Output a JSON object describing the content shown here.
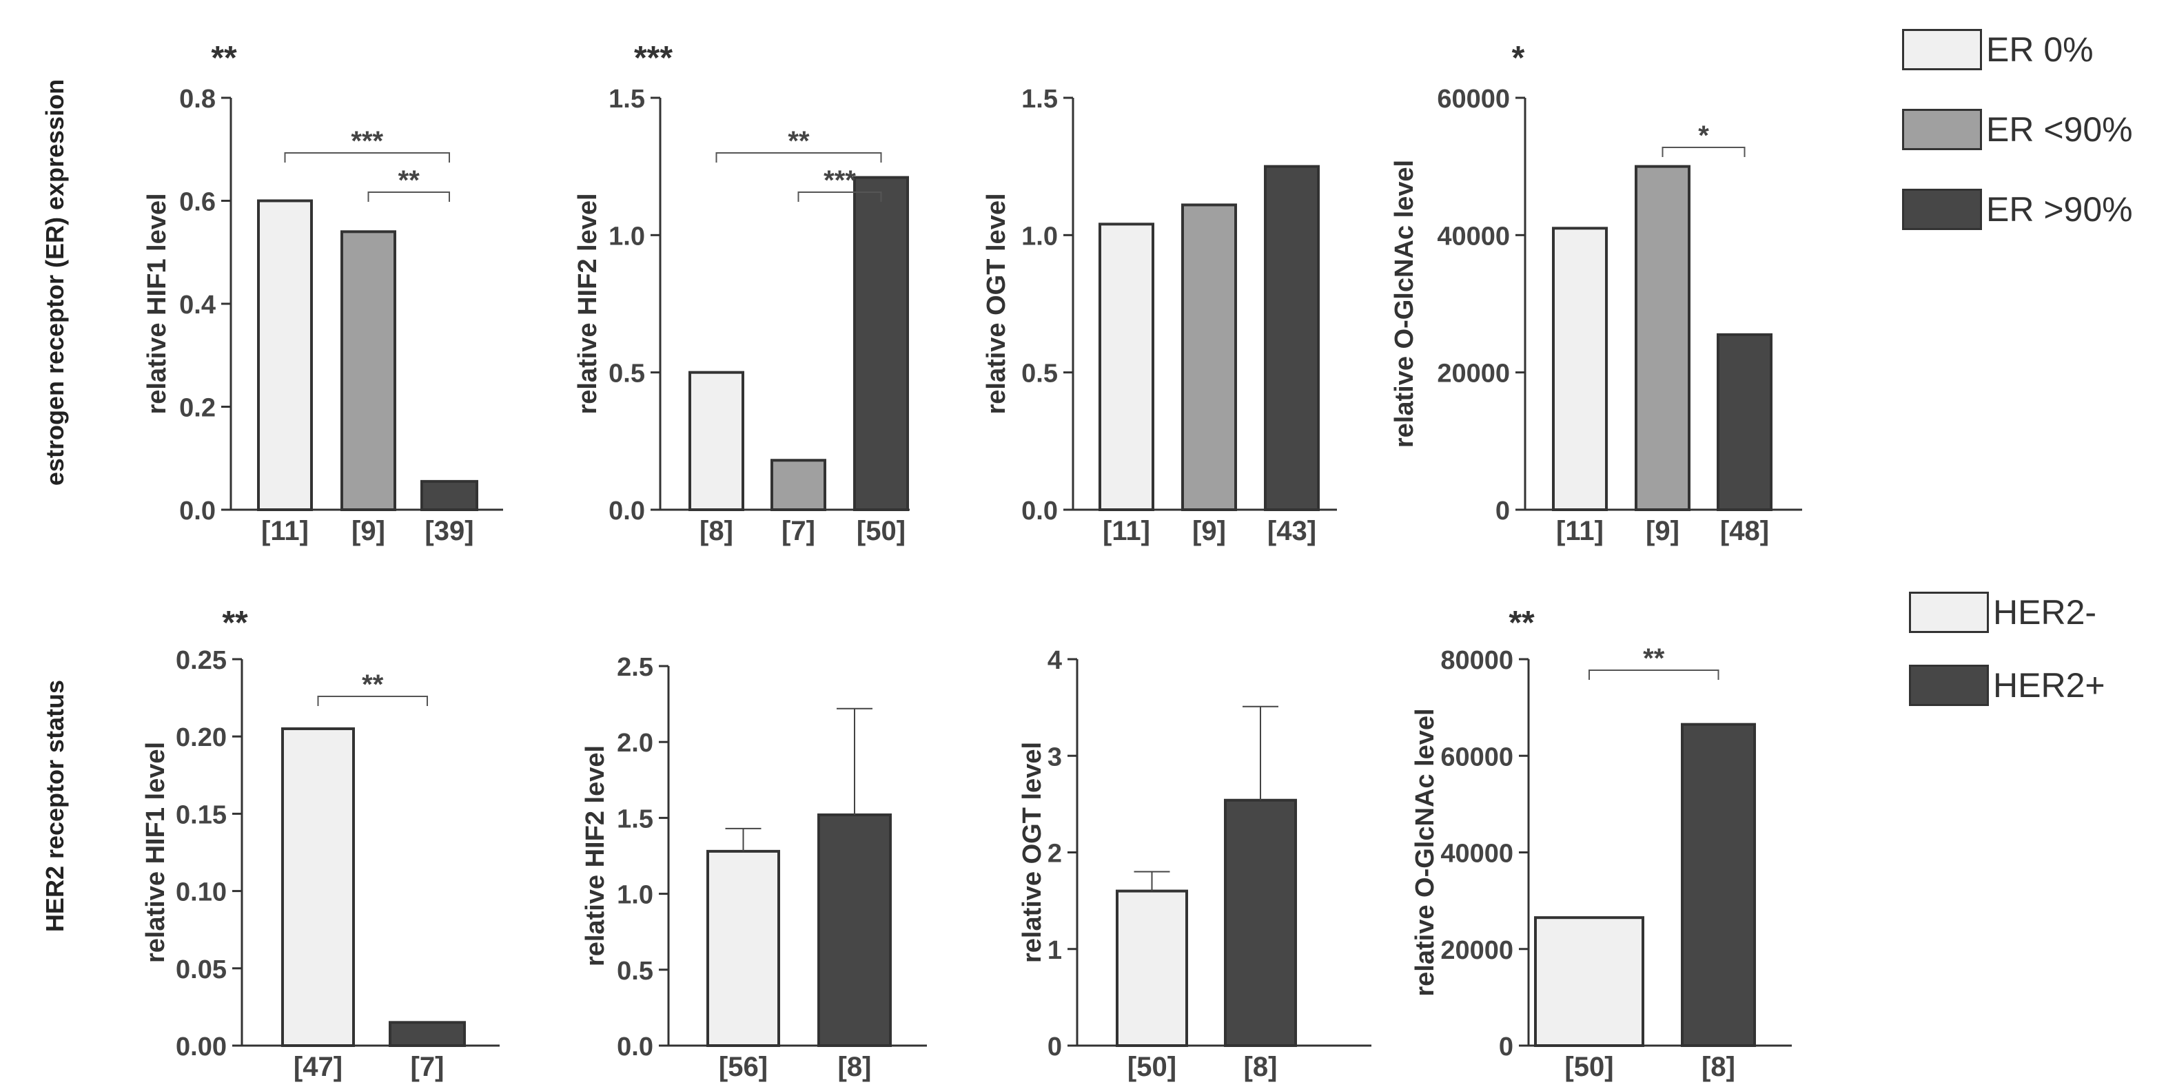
{
  "row_labels": [
    "estrogen receptor (ER) expression",
    "HER2 receptor status"
  ],
  "legends": [
    {
      "items": [
        {
          "label": "ER 0%",
          "color": "#f0f0f0"
        },
        {
          "label": "ER <90%",
          "color": "#a0a0a0"
        },
        {
          "label": "ER >90%",
          "color": "#474747"
        }
      ]
    },
    {
      "items": [
        {
          "label": "HER2-",
          "color": "#f0f0f0"
        },
        {
          "label": "HER2+",
          "color": "#474747"
        }
      ]
    }
  ],
  "chart_data": [
    {
      "type": "bar",
      "ylabel": "relative HIF1 level",
      "overall_sig": "**",
      "categories": [
        "[11]",
        "[9]",
        "[39]"
      ],
      "values": [
        0.6,
        0.54,
        0.055
      ],
      "colors": [
        "#f0f0f0",
        "#a0a0a0",
        "#474747"
      ],
      "ylim": [
        0,
        0.8
      ],
      "yticks": [
        0.0,
        0.2,
        0.4,
        0.6,
        0.8
      ],
      "ytick_labels": [
        "0.0",
        "0.2",
        "0.4",
        "0.6",
        "0.8"
      ],
      "brackets": [
        {
          "from": 0,
          "to": 2,
          "label": "***"
        },
        {
          "from": 1,
          "to": 2,
          "label": "**"
        }
      ]
    },
    {
      "type": "bar",
      "ylabel": "relative HIF2 level",
      "overall_sig": "***",
      "categories": [
        "[8]",
        "[7]",
        "[50]"
      ],
      "values": [
        0.5,
        0.18,
        1.21
      ],
      "colors": [
        "#f0f0f0",
        "#a0a0a0",
        "#474747"
      ],
      "ylim": [
        0,
        1.5
      ],
      "yticks": [
        0.0,
        0.5,
        1.0,
        1.5
      ],
      "ytick_labels": [
        "0.0",
        "0.5",
        "1.0",
        "1.5"
      ],
      "brackets": [
        {
          "from": 0,
          "to": 2,
          "label": "**"
        },
        {
          "from": 1,
          "to": 2,
          "label": "***"
        }
      ]
    },
    {
      "type": "bar",
      "ylabel": "relative OGT level",
      "overall_sig": "",
      "categories": [
        "[11]",
        "[9]",
        "[43]"
      ],
      "values": [
        1.04,
        1.11,
        1.25
      ],
      "colors": [
        "#f0f0f0",
        "#a0a0a0",
        "#474747"
      ],
      "ylim": [
        0,
        1.5
      ],
      "yticks": [
        0.0,
        0.5,
        1.0,
        1.5
      ],
      "ytick_labels": [
        "0.0",
        "0.5",
        "1.0",
        "1.5"
      ],
      "brackets": []
    },
    {
      "type": "bar",
      "ylabel": "relative O-GlcNAc level",
      "overall_sig": "*",
      "categories": [
        "[11]",
        "[9]",
        "[48]"
      ],
      "values": [
        41000,
        50000,
        25500
      ],
      "colors": [
        "#f0f0f0",
        "#a0a0a0",
        "#474747"
      ],
      "ylim": [
        0,
        60000
      ],
      "yticks": [
        0,
        20000,
        40000,
        60000
      ],
      "ytick_labels": [
        "0",
        "20000",
        "40000",
        "60000"
      ],
      "brackets": [
        {
          "from": 1,
          "to": 2,
          "label": "*"
        }
      ]
    },
    {
      "type": "bar",
      "ylabel": "relative HIF1 level",
      "overall_sig": "**",
      "categories": [
        "[47]",
        "[7]"
      ],
      "values": [
        0.205,
        0.015
      ],
      "colors": [
        "#f0f0f0",
        "#474747"
      ],
      "ylim": [
        0,
        0.25
      ],
      "yticks": [
        0.0,
        0.05,
        0.1,
        0.15,
        0.2,
        0.25
      ],
      "ytick_labels": [
        "0.00",
        "0.05",
        "0.10",
        "0.15",
        "0.20",
        "0.25"
      ],
      "brackets": [
        {
          "from": 0,
          "to": 1,
          "label": "**"
        }
      ]
    },
    {
      "type": "bar",
      "ylabel": "relative HIF2 level",
      "overall_sig": "",
      "categories": [
        "[56]",
        "[8]"
      ],
      "values": [
        1.28,
        1.52
      ],
      "errors": [
        0.15,
        0.7
      ],
      "colors": [
        "#f0f0f0",
        "#474747"
      ],
      "ylim": [
        0,
        2.5
      ],
      "yticks": [
        0.0,
        0.5,
        1.0,
        1.5,
        2.0,
        2.5
      ],
      "ytick_labels": [
        "0.0",
        "0.5",
        "1.0",
        "1.5",
        "2.0",
        "2.5"
      ],
      "brackets": []
    },
    {
      "type": "bar",
      "ylabel": "relative OGT level",
      "overall_sig": "",
      "categories": [
        "[50]",
        "[8]"
      ],
      "values": [
        1.6,
        2.54
      ],
      "errors": [
        0.2,
        0.97
      ],
      "colors": [
        "#f0f0f0",
        "#474747"
      ],
      "ylim": [
        0,
        4
      ],
      "yticks": [
        0,
        1,
        2,
        3,
        4
      ],
      "ytick_labels": [
        "0",
        "1",
        "2",
        "3",
        "4"
      ],
      "brackets": []
    },
    {
      "type": "bar",
      "ylabel": "relative O-GlcNAc level",
      "overall_sig": "**",
      "categories": [
        "[50]",
        "[8]"
      ],
      "values": [
        26500,
        66500
      ],
      "colors": [
        "#f0f0f0",
        "#474747"
      ],
      "ylim": [
        0,
        80000
      ],
      "yticks": [
        0,
        20000,
        40000,
        60000,
        80000
      ],
      "ytick_labels": [
        "0",
        "20000",
        "40000",
        "60000",
        "80000"
      ],
      "brackets": [
        {
          "from": 0,
          "to": 1,
          "label": "**"
        }
      ]
    }
  ]
}
